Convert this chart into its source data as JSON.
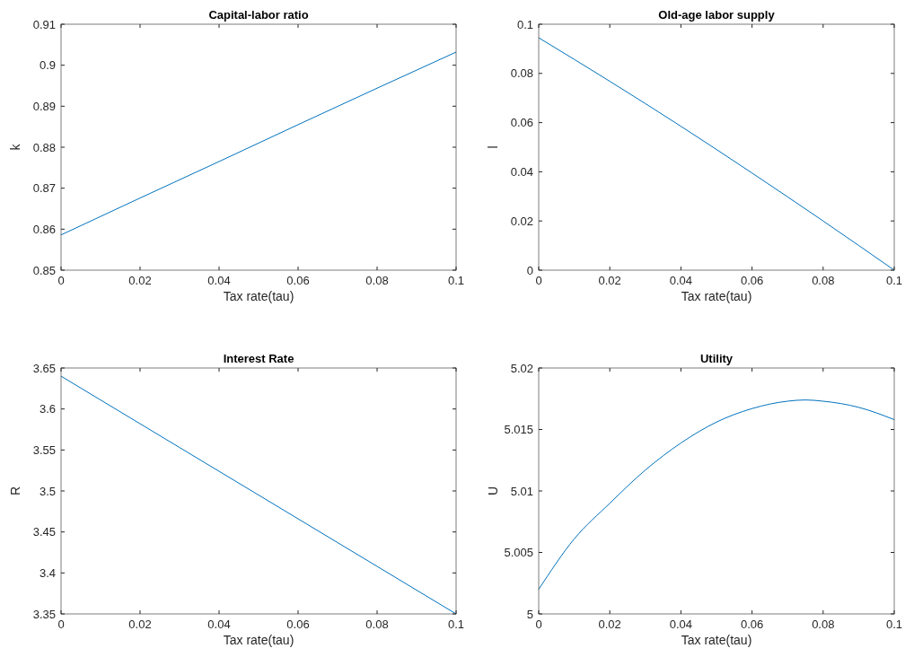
{
  "chart_data": [
    {
      "type": "line",
      "title": "Capital-labor ratio",
      "xlabel": "Tax rate(tau)",
      "ylabel": "k",
      "x": [
        0,
        0.02,
        0.04,
        0.06,
        0.08,
        0.1
      ],
      "series": [
        {
          "color": "#0072bd",
          "values": [
            0.8586,
            0.8676,
            0.8765,
            0.8855,
            0.8944,
            0.9032
          ]
        }
      ],
      "xlim": [
        0,
        0.1
      ],
      "xticks": [
        0,
        0.02,
        0.04,
        0.06,
        0.08,
        0.1
      ],
      "ylim": [
        0.85,
        0.91
      ],
      "yticks": [
        0.85,
        0.86,
        0.87,
        0.88,
        0.89,
        0.9,
        0.91
      ],
      "grid": false
    },
    {
      "type": "line",
      "title": "Old-age labor supply",
      "xlabel": "Tax rate(tau)",
      "ylabel": "l",
      "x": [
        0,
        0.02,
        0.04,
        0.06,
        0.08,
        0.1
      ],
      "series": [
        {
          "color": "#0072bd",
          "values": [
            0.0945,
            0.0768,
            0.0585,
            0.0395,
            0.02,
            0
          ]
        }
      ],
      "xlim": [
        0,
        0.1
      ],
      "xticks": [
        0,
        0.02,
        0.04,
        0.06,
        0.08,
        0.1
      ],
      "ylim": [
        0,
        0.1
      ],
      "yticks": [
        0,
        0.02,
        0.04,
        0.06,
        0.08,
        0.1
      ],
      "grid": false
    },
    {
      "type": "line",
      "title": "Interest Rate",
      "xlabel": "Tax rate(tau)",
      "ylabel": "R",
      "x": [
        0,
        0.02,
        0.04,
        0.06,
        0.08,
        0.1
      ],
      "series": [
        {
          "color": "#0072bd",
          "values": [
            3.64,
            3.582,
            3.524,
            3.466,
            3.408,
            3.35
          ]
        }
      ],
      "xlim": [
        0,
        0.1
      ],
      "xticks": [
        0,
        0.02,
        0.04,
        0.06,
        0.08,
        0.1
      ],
      "ylim": [
        3.35,
        3.65
      ],
      "yticks": [
        3.35,
        3.4,
        3.45,
        3.5,
        3.55,
        3.6,
        3.65
      ],
      "grid": false
    },
    {
      "type": "line",
      "title": "Utility",
      "xlabel": "Tax rate(tau)",
      "ylabel": "U",
      "x": [
        0,
        0.01,
        0.02,
        0.03,
        0.04,
        0.05,
        0.06,
        0.07,
        0.075,
        0.08,
        0.09,
        0.1
      ],
      "series": [
        {
          "color": "#0072bd",
          "values": [
            5.002,
            5.0061,
            5.009,
            5.0117,
            5.0139,
            5.0156,
            5.0167,
            5.0173,
            5.0174,
            5.0173,
            5.0168,
            5.0158
          ]
        }
      ],
      "xlim": [
        0,
        0.1
      ],
      "xticks": [
        0,
        0.02,
        0.04,
        0.06,
        0.08,
        0.1
      ],
      "ylim": [
        5,
        5.02
      ],
      "yticks": [
        5,
        5.005,
        5.01,
        5.015,
        5.02
      ],
      "grid": false
    }
  ]
}
